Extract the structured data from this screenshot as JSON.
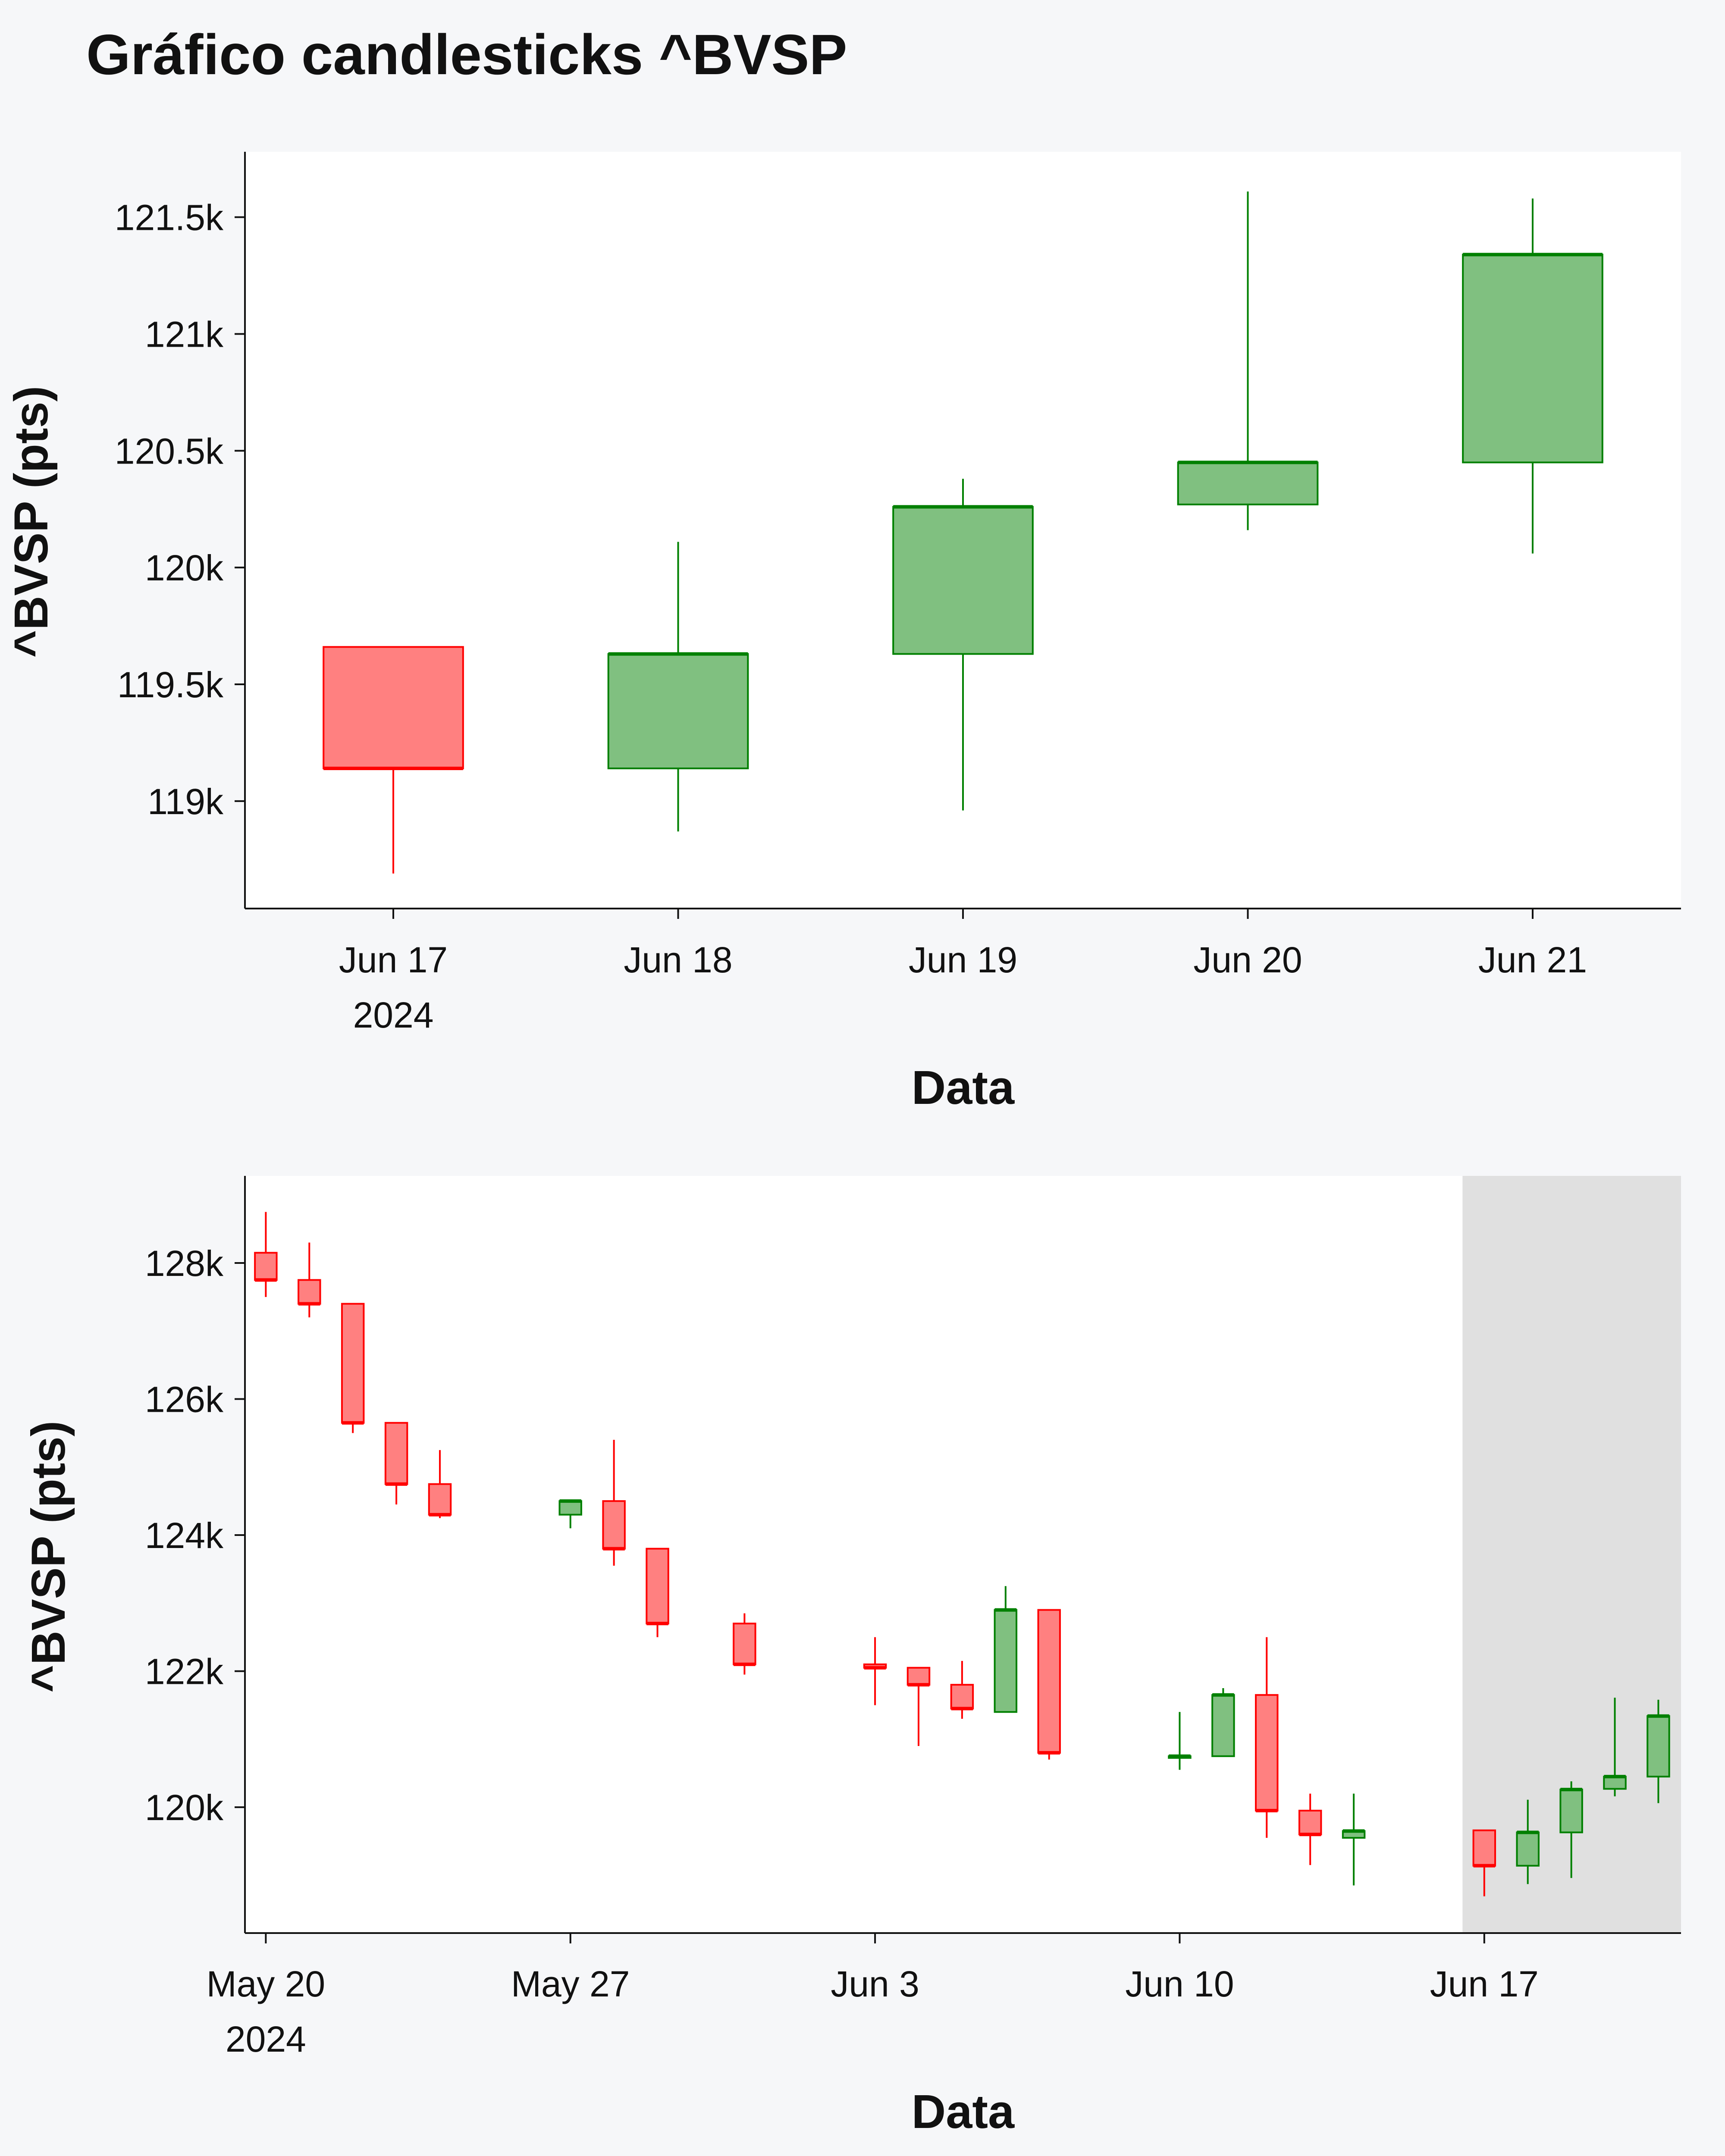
{
  "title": "Gráfico candlesticks ^BVSP",
  "colors": {
    "up": "#008000",
    "up_fill": "#80c080",
    "down": "#ff0000",
    "down_fill": "#ff8080",
    "highlight_band": "#e0e0e0",
    "plot_background": "#ffffff",
    "page_background": "#f6f7f9"
  },
  "chart_data": [
    {
      "type": "candlestick",
      "name": "zoom",
      "xlabel": "Data",
      "ylabel": "^BVSP (pts)",
      "ylim": [
        118540,
        121780
      ],
      "yticks": [
        119000,
        119500,
        120000,
        120500,
        121000,
        121500
      ],
      "ytick_labels": [
        "119k",
        "119.5k",
        "120k",
        "120.5k",
        "121k",
        "121.5k"
      ],
      "xlim": [
        "2024-06-16T11:30",
        "2024-06-21T12:30"
      ],
      "xticks": [
        "2024-06-17",
        "2024-06-18",
        "2024-06-19",
        "2024-06-20",
        "2024-06-21"
      ],
      "xtick_labels": [
        "Jun 17\n2024",
        "Jun 18",
        "Jun 19",
        "Jun 20",
        "Jun 21"
      ],
      "candles": [
        {
          "date": "2024-06-17",
          "open": 119660,
          "high": 119660,
          "low": 118690,
          "close": 119140
        },
        {
          "date": "2024-06-18",
          "open": 119140,
          "high": 120110,
          "low": 118870,
          "close": 119630
        },
        {
          "date": "2024-06-19",
          "open": 119630,
          "high": 120380,
          "low": 118960,
          "close": 120260
        },
        {
          "date": "2024-06-20",
          "open": 120270,
          "high": 121610,
          "low": 120160,
          "close": 120450
        },
        {
          "date": "2024-06-21",
          "open": 120450,
          "high": 121580,
          "low": 120060,
          "close": 121340
        }
      ]
    },
    {
      "type": "candlestick",
      "name": "overview",
      "xlabel": "Data",
      "ylabel": "^BVSP (pts)",
      "ylim": [
        118150,
        129280
      ],
      "yticks": [
        120000,
        122000,
        124000,
        126000,
        128000
      ],
      "ytick_labels": [
        "120k",
        "122k",
        "124k",
        "126k",
        "128k"
      ],
      "xlim": [
        "2024-05-19T12:30",
        "2024-06-21T12:30"
      ],
      "xticks": [
        "2024-05-20",
        "2024-05-27",
        "2024-06-03",
        "2024-06-10",
        "2024-06-17"
      ],
      "xtick_labels": [
        "May 20\n2024",
        "May 27",
        "Jun 3",
        "Jun 10",
        "Jun 17"
      ],
      "highlight": {
        "from": "2024-06-16T12:00",
        "to": "2024-06-21T12:30"
      },
      "candles": [
        {
          "date": "2024-05-20",
          "open": 128150,
          "high": 128750,
          "low": 127500,
          "close": 127750
        },
        {
          "date": "2024-05-21",
          "open": 127750,
          "high": 128300,
          "low": 127200,
          "close": 127400
        },
        {
          "date": "2024-05-22",
          "open": 127400,
          "high": 127400,
          "low": 125500,
          "close": 125650
        },
        {
          "date": "2024-05-23",
          "open": 125650,
          "high": 125650,
          "low": 124450,
          "close": 124750
        },
        {
          "date": "2024-05-24",
          "open": 124750,
          "high": 125250,
          "low": 124250,
          "close": 124300
        },
        {
          "date": "2024-05-27",
          "open": 124300,
          "high": 124500,
          "low": 124100,
          "close": 124500
        },
        {
          "date": "2024-05-28",
          "open": 124500,
          "high": 125400,
          "low": 123550,
          "close": 123800
        },
        {
          "date": "2024-05-29",
          "open": 123800,
          "high": 123800,
          "low": 122500,
          "close": 122700
        },
        {
          "date": "2024-05-31",
          "open": 122700,
          "high": 122850,
          "low": 121950,
          "close": 122100
        },
        {
          "date": "2024-06-03",
          "open": 122100,
          "high": 122500,
          "low": 121500,
          "close": 122050
        },
        {
          "date": "2024-06-04",
          "open": 122050,
          "high": 122050,
          "low": 120900,
          "close": 121800
        },
        {
          "date": "2024-06-05",
          "open": 121800,
          "high": 122150,
          "low": 121300,
          "close": 121450
        },
        {
          "date": "2024-06-06",
          "open": 121400,
          "high": 123250,
          "low": 121400,
          "close": 122900
        },
        {
          "date": "2024-06-07",
          "open": 122900,
          "high": 122900,
          "low": 120700,
          "close": 120800
        },
        {
          "date": "2024-06-10",
          "open": 120750,
          "high": 121400,
          "low": 120550,
          "close": 120750
        },
        {
          "date": "2024-06-11",
          "open": 120750,
          "high": 121750,
          "low": 120750,
          "close": 121650
        },
        {
          "date": "2024-06-12",
          "open": 121650,
          "high": 122500,
          "low": 119550,
          "close": 119950
        },
        {
          "date": "2024-06-13",
          "open": 119950,
          "high": 120200,
          "low": 119150,
          "close": 119600
        },
        {
          "date": "2024-06-14",
          "open": 119550,
          "high": 120200,
          "low": 118850,
          "close": 119650
        },
        {
          "date": "2024-06-17",
          "open": 119660,
          "high": 119660,
          "low": 118690,
          "close": 119140
        },
        {
          "date": "2024-06-18",
          "open": 119140,
          "high": 120110,
          "low": 118870,
          "close": 119630
        },
        {
          "date": "2024-06-19",
          "open": 119630,
          "high": 120380,
          "low": 118960,
          "close": 120260
        },
        {
          "date": "2024-06-20",
          "open": 120270,
          "high": 121610,
          "low": 120160,
          "close": 120450
        },
        {
          "date": "2024-06-21",
          "open": 120450,
          "high": 121580,
          "low": 120060,
          "close": 121340
        }
      ]
    }
  ]
}
